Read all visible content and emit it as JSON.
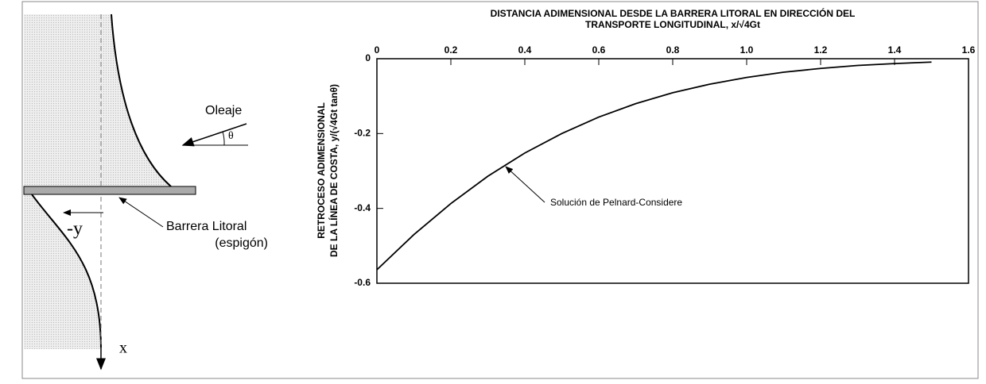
{
  "chart_data": {
    "type": "line",
    "title": [
      "DISTANCIA ADIMENSIONAL DESDE LA BARRERA LITORAL EN DIRECCIÓN DEL",
      "TRANSPORTE LONGITUDINAL, x/√4Gt"
    ],
    "y_label": [
      "RETROCESO ADIMENSIONAL",
      "DE LA LÍNEA DE COSTA, y/(√4Gt tanθ)"
    ],
    "annotation": "Solución de Pelnard-Considere",
    "x": [
      0,
      0.1,
      0.2,
      0.3,
      0.4,
      0.5,
      0.6,
      0.7,
      0.8,
      0.9,
      1.0,
      1.1,
      1.2,
      1.3,
      1.4,
      1.5
    ],
    "values": [
      -0.564,
      -0.47,
      -0.387,
      -0.314,
      -0.252,
      -0.2,
      -0.156,
      -0.12,
      -0.091,
      -0.068,
      -0.05,
      -0.036,
      -0.026,
      -0.018,
      -0.013,
      -0.009
    ],
    "color": "#000000",
    "xlim": [
      0,
      1.6
    ],
    "xticks": [
      0,
      0.2,
      0.4,
      0.6,
      0.8,
      {
        "value": 1,
        "label": "1.0"
      },
      1.2,
      1.4,
      1.6
    ],
    "ylim": [
      -0.6,
      0
    ],
    "yticks": [
      0,
      -0.2,
      -0.4,
      -0.6
    ]
  },
  "diagram": {
    "wave": "Oleaje",
    "angle": "θ",
    "offset": "-y",
    "barrier": "Barrera Litoral",
    "barrier_note": "(espigón)",
    "axis": "x"
  }
}
